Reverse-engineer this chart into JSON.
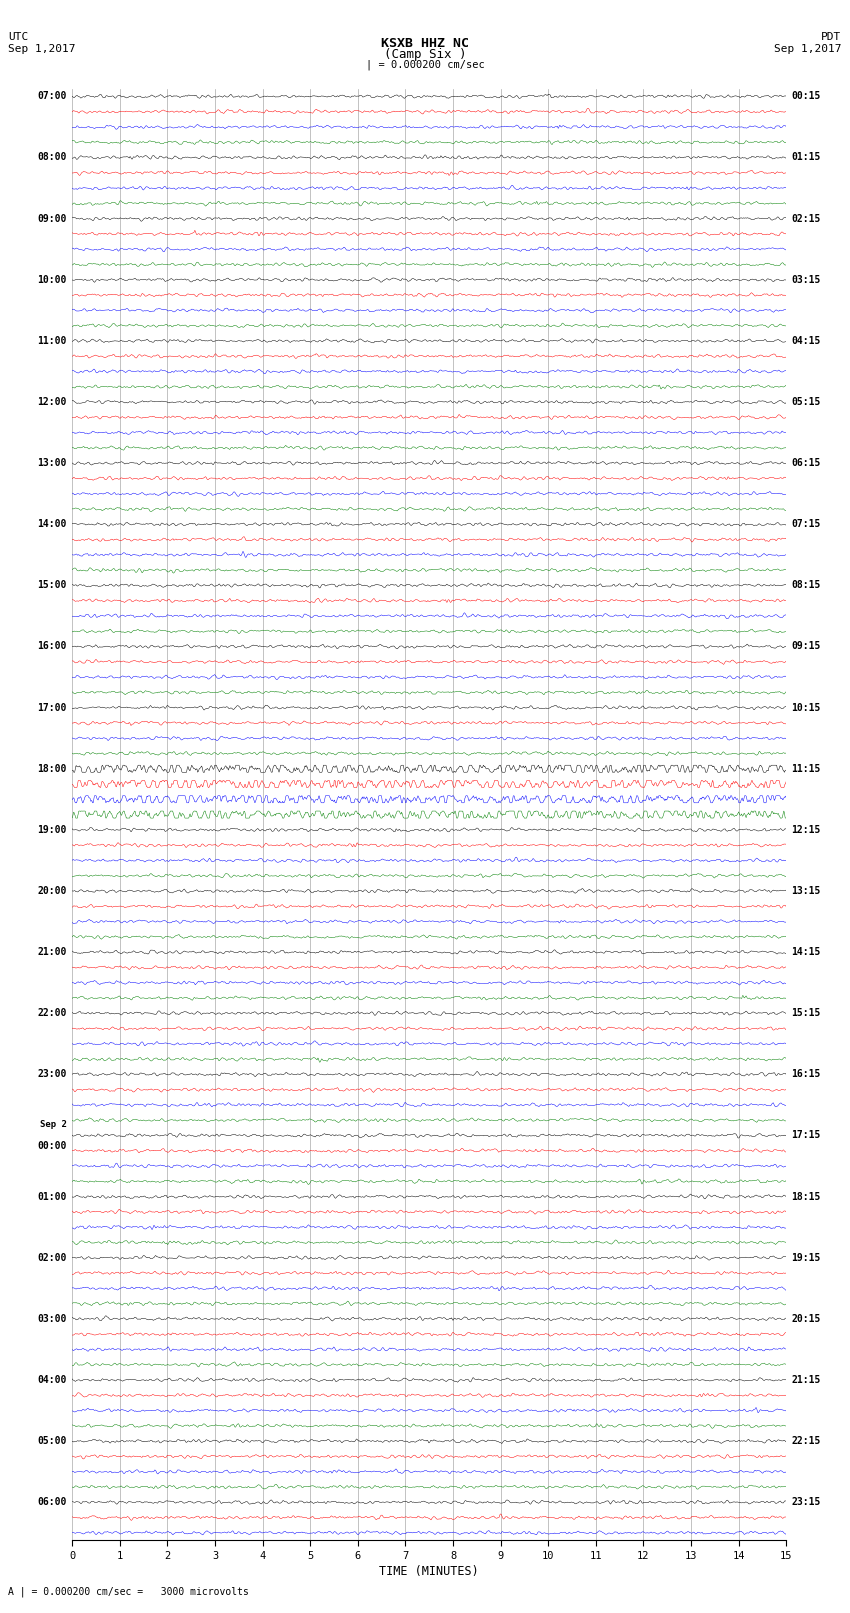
{
  "title_line1": "KSXB HHZ NC",
  "title_line2": "(Camp Six )",
  "scale_label": "| = 0.000200 cm/sec",
  "utc_label1": "UTC",
  "utc_label2": "Sep 1,2017",
  "pdt_label1": "PDT",
  "pdt_label2": "Sep 1,2017",
  "bottom_label": "A | = 0.000200 cm/sec =   3000 microvolts",
  "xlabel": "TIME (MINUTES)",
  "colors": [
    "black",
    "red",
    "blue",
    "green"
  ],
  "left_times": [
    "07:00",
    "",
    "",
    "",
    "08:00",
    "",
    "",
    "",
    "09:00",
    "",
    "",
    "",
    "10:00",
    "",
    "",
    "",
    "11:00",
    "",
    "",
    "",
    "12:00",
    "",
    "",
    "",
    "13:00",
    "",
    "",
    "",
    "14:00",
    "",
    "",
    "",
    "15:00",
    "",
    "",
    "",
    "16:00",
    "",
    "",
    "",
    "17:00",
    "",
    "",
    "",
    "18:00",
    "",
    "",
    "",
    "19:00",
    "",
    "",
    "",
    "20:00",
    "",
    "",
    "",
    "21:00",
    "",
    "",
    "",
    "22:00",
    "",
    "",
    "",
    "23:00",
    "",
    "",
    "",
    "Sep 2",
    "00:00",
    "",
    "",
    "01:00",
    "",
    "",
    "",
    "02:00",
    "",
    "",
    "",
    "03:00",
    "",
    "",
    "",
    "04:00",
    "",
    "",
    "",
    "05:00",
    "",
    "",
    "",
    "06:00",
    "",
    ""
  ],
  "right_times": [
    "00:15",
    "",
    "",
    "",
    "01:15",
    "",
    "",
    "",
    "02:15",
    "",
    "",
    "",
    "03:15",
    "",
    "",
    "",
    "04:15",
    "",
    "",
    "",
    "05:15",
    "",
    "",
    "",
    "06:15",
    "",
    "",
    "",
    "07:15",
    "",
    "",
    "",
    "08:15",
    "",
    "",
    "",
    "09:15",
    "",
    "",
    "",
    "10:15",
    "",
    "",
    "",
    "11:15",
    "",
    "",
    "",
    "12:15",
    "",
    "",
    "",
    "13:15",
    "",
    "",
    "",
    "14:15",
    "",
    "",
    "",
    "15:15",
    "",
    "",
    "",
    "16:15",
    "",
    "",
    "",
    "17:15",
    "",
    "",
    "",
    "18:15",
    "",
    "",
    "",
    "19:15",
    "",
    "",
    "",
    "20:15",
    "",
    "",
    "",
    "21:15",
    "",
    "",
    "",
    "22:15",
    "",
    "",
    "",
    "23:15",
    "",
    ""
  ],
  "n_rows": 95,
  "n_cols": 1800,
  "x_ticks": [
    0,
    1,
    2,
    3,
    4,
    5,
    6,
    7,
    8,
    9,
    10,
    11,
    12,
    13,
    14,
    15
  ],
  "bg_color": "white",
  "fig_width": 8.5,
  "fig_height": 16.13,
  "noise_scale": 0.06,
  "amplitude_scale": 0.32,
  "sep2_row": 68,
  "big_event_rows": [
    44,
    45,
    46,
    47
  ],
  "big_event_scale": 0.25,
  "grid_color": "#aaaaaa",
  "lw": 0.35
}
